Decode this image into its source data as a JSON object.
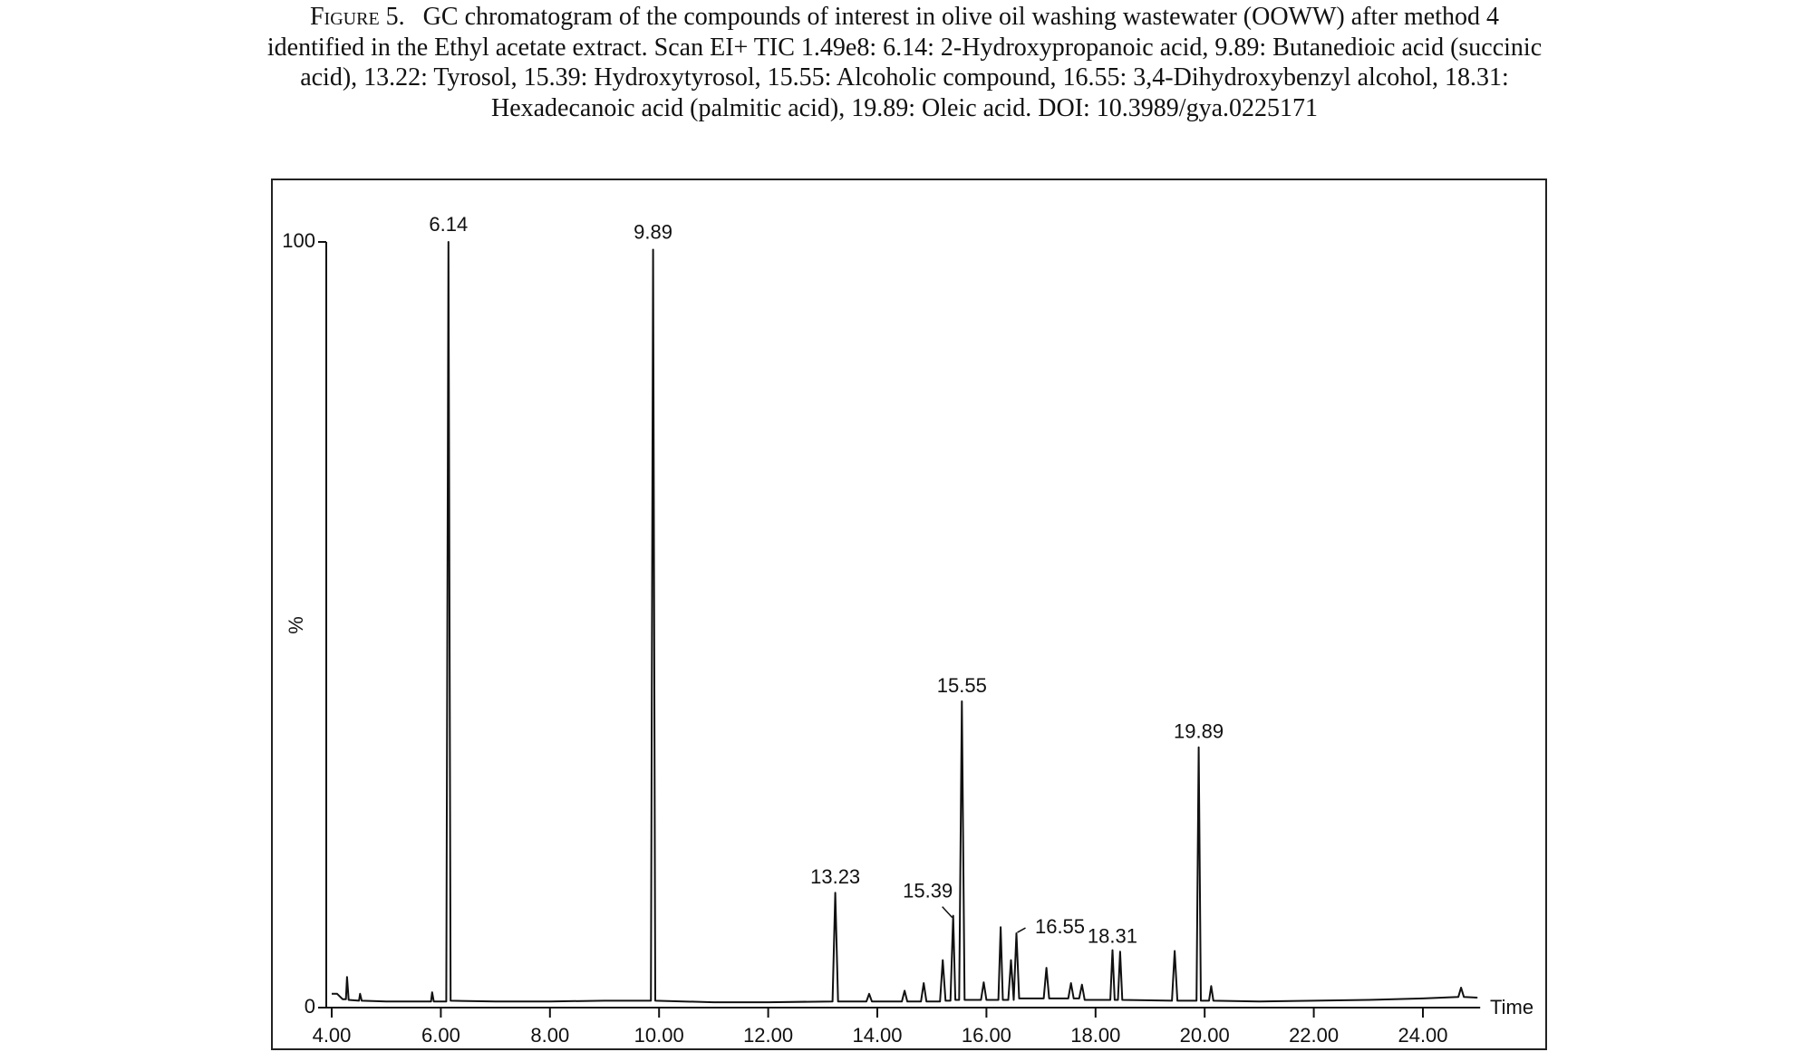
{
  "chart_data": {
    "type": "line",
    "figure_label": "Figure 5.",
    "title": [
      "GC chromatogram of the compounds of interest in olive oil washing wastewater (OOWW) after method 4",
      "identified in the Ethyl acetate extract. Scan EI+ TIC 1.49e8: 6.14: 2-Hydroxypropanoic acid, 9.89: Butanedioic acid (succinic",
      "acid), 13.22: Tyrosol, 15.39: Hydroxytyrosol, 15.55: Alcoholic compound, 16.55: 3,4-Dihydroxybenzyl alcohol, 18.31:",
      "Hexadecanoic acid (palmitic acid), 19.89: Oleic acid. DOI: 10.3989/gya.0225171"
    ],
    "x_label": "Time",
    "y_label": "%",
    "color": "#111111",
    "xlim": [
      3.9,
      25.05
    ],
    "ylim": [
      0,
      100
    ],
    "xticks": [
      {
        "value": 4,
        "label": "4.00"
      },
      {
        "value": 6,
        "label": "6.00"
      },
      {
        "value": 8,
        "label": "8.00"
      },
      {
        "value": 10,
        "label": "10.00"
      },
      {
        "value": 12,
        "label": "12.00"
      },
      {
        "value": 14,
        "label": "14.00"
      },
      {
        "value": 16,
        "label": "16.00"
      },
      {
        "value": 18,
        "label": "18.00"
      },
      {
        "value": 20,
        "label": "20.00"
      },
      {
        "value": 22,
        "label": "22.00"
      },
      {
        "value": 24,
        "label": "24.00"
      }
    ],
    "yticks": [
      0,
      100
    ],
    "x": [
      4.0,
      4.1,
      4.2,
      4.26,
      4.28,
      4.31,
      4.5,
      4.52,
      4.55,
      5.0,
      5.82,
      5.84,
      5.87,
      6.1,
      6.14,
      6.18,
      7.0,
      8.0,
      9.0,
      9.85,
      9.89,
      9.93,
      11.0,
      12.0,
      13.18,
      13.23,
      13.28,
      13.8,
      13.85,
      13.9,
      14.45,
      14.5,
      14.55,
      14.8,
      14.85,
      14.9,
      15.15,
      15.2,
      15.25,
      15.34,
      15.39,
      15.43,
      15.5,
      15.55,
      15.6,
      15.9,
      15.95,
      16.0,
      16.22,
      16.26,
      16.3,
      16.4,
      16.45,
      16.5,
      16.55,
      16.6,
      17.05,
      17.1,
      17.15,
      17.5,
      17.55,
      17.6,
      17.7,
      17.75,
      17.8,
      18.27,
      18.31,
      18.35,
      18.41,
      18.45,
      18.49,
      19.4,
      19.45,
      19.5,
      19.85,
      19.89,
      19.93,
      20.08,
      20.12,
      20.16,
      21.0,
      22.0,
      23.0,
      24.0,
      24.65,
      24.7,
      24.75,
      25.0
    ],
    "values": [
      1.8,
      1.8,
      1.1,
      1.1,
      4.0,
      1.0,
      0.9,
      1.8,
      0.9,
      0.8,
      0.8,
      2.0,
      0.8,
      0.8,
      100,
      0.9,
      0.8,
      0.8,
      0.9,
      0.9,
      99,
      0.9,
      0.7,
      0.7,
      0.8,
      15,
      0.8,
      0.8,
      1.8,
      0.8,
      0.8,
      2.2,
      0.8,
      0.8,
      3.2,
      0.8,
      0.8,
      6.2,
      0.9,
      0.9,
      12,
      1.0,
      1.0,
      40,
      1.0,
      1.0,
      3.3,
      1.0,
      1.0,
      10.5,
      1.0,
      1.0,
      6.2,
      1.0,
      9.7,
      1.2,
      1.2,
      5.2,
      1.2,
      1.2,
      3.2,
      1.2,
      1.2,
      3.0,
      1.0,
      1.0,
      7.5,
      1.0,
      1.0,
      7.3,
      1.0,
      0.9,
      7.4,
      0.9,
      0.9,
      34,
      0.9,
      0.9,
      2.8,
      0.9,
      0.8,
      0.9,
      1.0,
      1.2,
      1.4,
      2.6,
      1.4,
      1.3
    ],
    "annotations": [
      {
        "text": "6.14",
        "x": 6.14,
        "y": 100
      },
      {
        "text": "9.89",
        "x": 9.89,
        "y": 99
      },
      {
        "text": "13.23",
        "x": 13.23,
        "y": 15
      },
      {
        "text": "15.39",
        "x": 15.39,
        "y": 12
      },
      {
        "text": "15.55",
        "x": 15.55,
        "y": 40
      },
      {
        "text": "16.55",
        "x": 16.55,
        "y": 9.7
      },
      {
        "text": "18.31",
        "x": 18.31,
        "y": 7.5
      },
      {
        "text": "19.89",
        "x": 19.89,
        "y": 34
      }
    ]
  }
}
